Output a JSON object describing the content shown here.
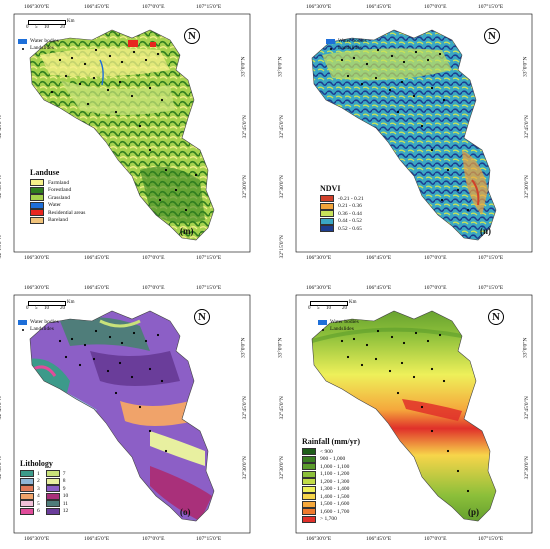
{
  "coords_top": [
    "106°30'0\"E",
    "106°45'0\"E",
    "107°0'0\"E",
    "107°15'0\"E"
  ],
  "coords_side": [
    "33°0'0\"N",
    "32°45'0\"N",
    "32°30'0\"N",
    "32°15'0\"N"
  ],
  "scale": {
    "ticks": [
      "0",
      "5",
      "10",
      "20"
    ],
    "unit": "Km"
  },
  "common_legend": {
    "water": "Water bodies",
    "landslides": "Landslides"
  },
  "north_symbol": "N",
  "panels": {
    "m": {
      "label": "(m)",
      "legend_title": "Landuse",
      "items": [
        {
          "label": "Farmland",
          "color": "#f5f08a"
        },
        {
          "label": "Forestland",
          "color": "#2f7d1f"
        },
        {
          "label": "Grassland",
          "color": "#a6d24e"
        },
        {
          "label": "Water",
          "color": "#1e6fd9"
        },
        {
          "label": "Residential areas",
          "color": "#e8261f"
        },
        {
          "label": "Bareland",
          "color": "#f0c27a"
        }
      ]
    },
    "n": {
      "label": "(n)",
      "legend_title": "NDVI",
      "items": [
        {
          "label": "-0.21 - 0.21",
          "color": "#d0402a"
        },
        {
          "label": "0.21 - 0.36",
          "color": "#f2a43a"
        },
        {
          "label": "0.36 - 0.44",
          "color": "#c7e15a"
        },
        {
          "label": "0.44 - 0.52",
          "color": "#3aa7c4"
        },
        {
          "label": "0.52 - 0.65",
          "color": "#1d3d8f"
        }
      ]
    },
    "o": {
      "label": "(o)",
      "legend_title": "Lithology",
      "items": [
        {
          "label": "1",
          "color": "#3c9a8a"
        },
        {
          "label": "2",
          "color": "#8fb6d8"
        },
        {
          "label": "3",
          "color": "#e07a5a"
        },
        {
          "label": "4",
          "color": "#f0a36a"
        },
        {
          "label": "5",
          "color": "#f0c0d8"
        },
        {
          "label": "6",
          "color": "#e04c9a"
        },
        {
          "label": "7",
          "color": "#c9e27a"
        },
        {
          "label": "8",
          "color": "#e8f0a0"
        },
        {
          "label": "9",
          "color": "#8c5fc6"
        },
        {
          "label": "10",
          "color": "#a9307a"
        },
        {
          "label": "11",
          "color": "#4f7d7a"
        },
        {
          "label": "12",
          "color": "#6a3d9a"
        }
      ]
    },
    "p": {
      "label": "(p)",
      "legend_title": "Rainfall (mm/yr)",
      "items": [
        {
          "label": "< 900",
          "color": "#1f5e1a"
        },
        {
          "label": "900 - 1,000",
          "color": "#3b7f22"
        },
        {
          "label": "1,000 - 1,100",
          "color": "#5c9c2c"
        },
        {
          "label": "1,100 - 1,200",
          "color": "#8cbf3a"
        },
        {
          "label": "1,200 - 1,300",
          "color": "#c2dc48"
        },
        {
          "label": "1,300 - 1,400",
          "color": "#eef05a"
        },
        {
          "label": "1,400 - 1,500",
          "color": "#f7d54a"
        },
        {
          "label": "1,500 - 1,600",
          "color": "#f5a83c"
        },
        {
          "label": "1,600 - 1,700",
          "color": "#ef7a2e"
        },
        {
          "label": "> 1,700",
          "color": "#e0302a"
        }
      ]
    }
  }
}
